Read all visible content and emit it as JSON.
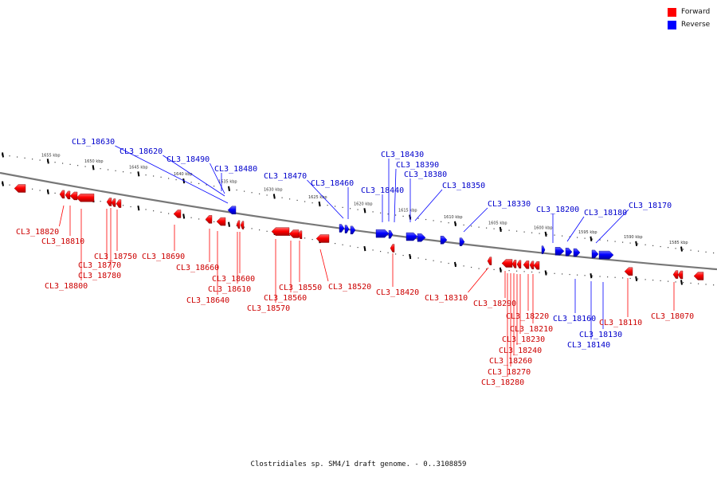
{
  "legend": {
    "forward_label": "Forward",
    "reverse_label": "Reverse",
    "forward_color": "#ff0000",
    "reverse_color": "#0000ff"
  },
  "caption": "Clostridiales sp. SM4/1 draft genome. - 0..3108859",
  "scale_labels": [
    "1655 kbp",
    "1650 kbp",
    "1645 kbp",
    "1640 kbp",
    "1635 kbp",
    "1630 kbp",
    "1625 kbp",
    "1620 kbp",
    "1615 kbp",
    "1610 kbp",
    "1605 kbp",
    "1600 kbp",
    "1595 kbp",
    "1590 kbp",
    "1585 kbp"
  ],
  "genes_forward": [
    "CL3_18820",
    "CL3_18810",
    "CL3_18800",
    "CL3_18780",
    "CL3_18770",
    "CL3_18750",
    "CL3_18690",
    "CL3_18660",
    "CL3_18640",
    "CL3_18610",
    "CL3_18600",
    "CL3_18570",
    "CL3_18560",
    "CL3_18550",
    "CL3_18520",
    "CL3_18420",
    "CL3_18310",
    "CL3_18290",
    "CL3_18280",
    "CL3_18270",
    "CL3_18260",
    "CL3_18240",
    "CL3_18230",
    "CL3_18220",
    "CL3_18210",
    "CL3_18110",
    "CL3_18070"
  ],
  "genes_reverse": [
    "CL3_18630",
    "CL3_18620",
    "CL3_18490",
    "CL3_18480",
    "CL3_18470",
    "CL3_18460",
    "CL3_18440",
    "CL3_18430",
    "CL3_18390",
    "CL3_18380",
    "CL3_18350",
    "CL3_18330",
    "CL3_18200",
    "CL3_18180",
    "CL3_18170",
    "CL3_18160",
    "CL3_18140",
    "CL3_18130"
  ]
}
